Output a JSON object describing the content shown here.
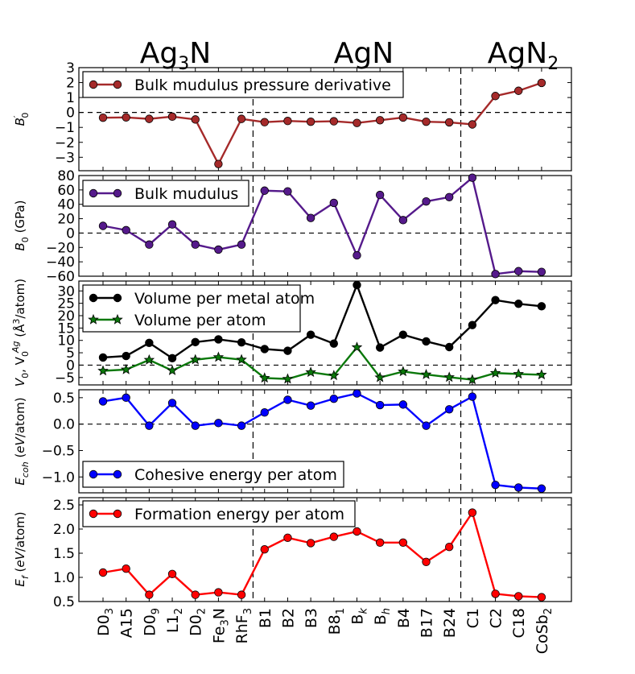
{
  "chart_data": {
    "type": "line",
    "figure_groups": [
      {
        "name": "Ag",
        "subscript": "3",
        "suffix": "N"
      },
      {
        "name": "AgN",
        "subscript": "",
        "suffix": ""
      },
      {
        "name": "AgN",
        "subscript": "2",
        "suffix": ""
      }
    ],
    "categories": [
      {
        "base": "D0",
        "sub": "3"
      },
      {
        "base": "A15",
        "sub": ""
      },
      {
        "base": "D0",
        "sub": "9"
      },
      {
        "base": "L1",
        "sub": "2"
      },
      {
        "base": "D0",
        "sub": "2"
      },
      {
        "base": "Fe",
        "sub": "3",
        "tail": "N"
      },
      {
        "base": "RhF",
        "sub": "3"
      },
      {
        "base": "B1",
        "sub": ""
      },
      {
        "base": "B2",
        "sub": ""
      },
      {
        "base": "B3",
        "sub": ""
      },
      {
        "base": "B8",
        "sub": "1"
      },
      {
        "base": "B",
        "sub": "k"
      },
      {
        "base": "B",
        "sub": "h"
      },
      {
        "base": "B4",
        "sub": ""
      },
      {
        "base": "B17",
        "sub": ""
      },
      {
        "base": "B24",
        "sub": ""
      },
      {
        "base": "C1",
        "sub": ""
      },
      {
        "base": "C2",
        "sub": ""
      },
      {
        "base": "C18",
        "sub": ""
      },
      {
        "base": "CoSb",
        "sub": "2"
      }
    ],
    "group_boundaries_after_index": [
      6,
      15
    ],
    "panels": [
      {
        "id": "bprime",
        "ylabel": "B′₀",
        "ylim": [
          -3.9,
          3
        ],
        "yticks": [
          3,
          2,
          1,
          0,
          -1,
          -2,
          -3
        ],
        "zero_line": true,
        "legend_position": "top-left",
        "series": [
          {
            "name": "Bulk mudulus pressure derivative",
            "color": "#a52a2a",
            "marker": "circle",
            "values": [
              -0.35,
              -0.33,
              -0.43,
              -0.28,
              -0.47,
              -3.45,
              -0.43,
              -0.65,
              -0.57,
              -0.62,
              -0.59,
              -0.7,
              -0.52,
              -0.34,
              -0.62,
              -0.66,
              -0.8,
              1.1,
              1.45,
              1.98
            ]
          }
        ]
      },
      {
        "id": "b0",
        "ylabel": "B₀ (GPa)",
        "ylim": [
          -60,
          80
        ],
        "yticks": [
          80,
          60,
          40,
          20,
          0,
          -20,
          -40,
          -60
        ],
        "zero_line": true,
        "legend_position": "top-left",
        "series": [
          {
            "name": "Bulk mudulus",
            "color": "#551a8b",
            "marker": "circle",
            "values": [
              10,
              4,
              -16,
              12,
              -16,
              -23,
              -16,
              59,
              58,
              21,
              42,
              -31,
              53,
              18,
              44,
              50,
              77,
              -57,
              -53,
              -54
            ]
          }
        ]
      },
      {
        "id": "volume",
        "ylabel": "V₀, V₀ᴬᵍ (Å³/atom)",
        "ylim": [
          -8,
          34
        ],
        "yticks": [
          30,
          25,
          20,
          15,
          10,
          5,
          0,
          -5
        ],
        "zero_line": true,
        "legend_position": "top-left",
        "series": [
          {
            "name": "Volume per metal atom",
            "color": "#000000",
            "marker": "circle",
            "values": [
              3.1,
              3.7,
              9,
              2.8,
              9.3,
              10.4,
              9.2,
              6.5,
              5.8,
              12.3,
              8.7,
              32.4,
              7.1,
              12.3,
              9.6,
              7.3,
              16.2,
              26.3,
              24.8,
              23.8
            ]
          },
          {
            "name": "Volume per atom",
            "color": "#0a780a",
            "marker": "star",
            "values": [
              -2.3,
              -1.8,
              2.1,
              -2.2,
              2.2,
              3.2,
              2.2,
              -5.2,
              -5.6,
              -2.9,
              -4.2,
              7.2,
              -5,
              -2.6,
              -3.8,
              -4.9,
              -5.9,
              -3.2,
              -3.6,
              -3.9
            ]
          }
        ]
      },
      {
        "id": "ecoh",
        "ylabel": "E_coh (eV/atom)",
        "ylim": [
          -1.3,
          0.65
        ],
        "yticks": [
          0.5,
          0.0,
          -0.5,
          -1.0
        ],
        "tick_labels": [
          "0.5",
          "0.0",
          "−0.5",
          "−1.0"
        ],
        "zero_line": true,
        "legend_position": "bottom-left",
        "series": [
          {
            "name": "Cohesive energy per atom",
            "color": "#0000ff",
            "marker": "circle",
            "values": [
              0.43,
              0.5,
              -0.03,
              0.4,
              -0.03,
              0.02,
              -0.03,
              0.22,
              0.46,
              0.35,
              0.48,
              0.58,
              0.36,
              0.37,
              -0.03,
              0.28,
              0.52,
              -1.15,
              -1.2,
              -1.22
            ]
          }
        ]
      },
      {
        "id": "ef",
        "ylabel": "E_f (eV/atom)",
        "ylim": [
          0.5,
          2.65
        ],
        "yticks": [
          2.5,
          2.0,
          1.5,
          1.0,
          0.5
        ],
        "tick_labels": [
          "2.5",
          "2.0",
          "1.5",
          "1.0",
          "0.5"
        ],
        "zero_line": false,
        "legend_position": "top-left",
        "series": [
          {
            "name": "Formation energy per atom",
            "color": "#ff0000",
            "marker": "circle",
            "values": [
              1.1,
              1.18,
              0.64,
              1.07,
              0.64,
              0.69,
              0.64,
              1.58,
              1.82,
              1.71,
              1.84,
              1.95,
              1.72,
              1.72,
              1.32,
              1.63,
              2.34,
              0.66,
              0.61,
              0.59
            ]
          }
        ]
      }
    ]
  },
  "axis_labels": {
    "bprime": {
      "main": "B",
      "sup": "′",
      "sub": "0"
    },
    "b0": {
      "main": "B",
      "sub": "0",
      "unit": " (GPa)"
    },
    "volume": {
      "pre": "V",
      "sub1": "0",
      "mid": ", V",
      "sub2": "0",
      "sup2": "Ag",
      "unit_pre": " (Å",
      "unit_sup": "3",
      "unit_post": "/atom)"
    },
    "ecoh": {
      "main": "E",
      "sub": "coh",
      "unit_pre": " (",
      "unit_it": "eV",
      "unit_post": "/atom)"
    },
    "ef": {
      "main": "E",
      "sub": "f",
      "unit_pre": " (",
      "unit_it": "eV",
      "unit_post": "/atom)"
    }
  },
  "colors": {
    "bprime": "#a52a2a",
    "b0": "#551a8b",
    "vol_metal": "#000000",
    "vol_atom": "#0a780a",
    "ecoh": "#0000ff",
    "ef": "#ff0000"
  }
}
